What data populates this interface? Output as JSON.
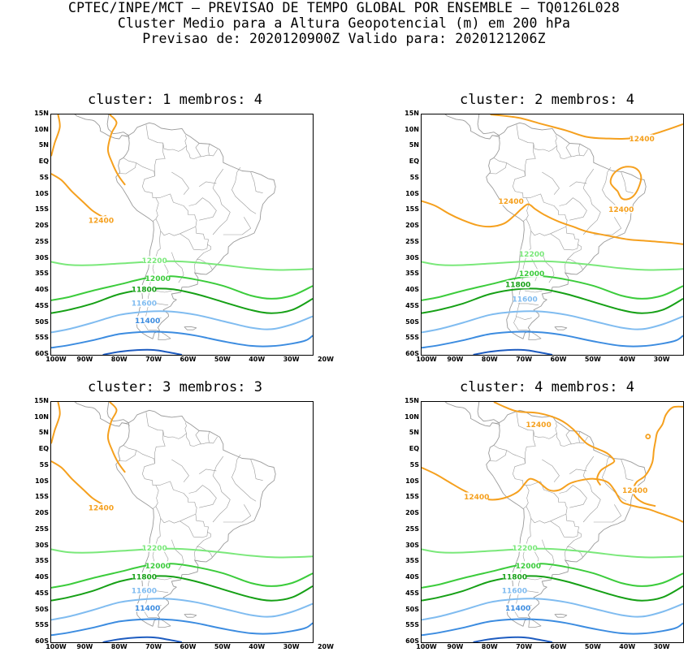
{
  "header": {
    "line1": "CPTEC/INPE/MCT – PREVISAO DE TEMPO GLOBAL POR ENSEMBLE – TQ0126L028",
    "line2": "Cluster Medio para a Altura Geopotencial (m) em 200 hPa",
    "line3": "Previsao de: 2020120900Z    Valido para: 2020121206Z"
  },
  "map": {
    "lat_labels": [
      "15N",
      "10N",
      "5N",
      "EQ",
      "5S",
      "10S",
      "15S",
      "20S",
      "25S",
      "30S",
      "35S",
      "40S",
      "45S",
      "50S",
      "55S",
      "60S"
    ],
    "lon_labels": [
      "100W",
      "90W",
      "80W",
      "70W",
      "60W",
      "50W",
      "40W",
      "30W",
      "20W"
    ],
    "lon_range": [
      -100,
      -24
    ],
    "lat_range": [
      -60,
      15
    ]
  },
  "colors": {
    "c12400": "#f5a01e",
    "c12200": "#7ae87a",
    "c12000": "#3ccc3c",
    "c11800": "#16a016",
    "c11600": "#80bcf0",
    "c11400": "#3c8ce0",
    "c11200": "#1e5cc0",
    "coast": "#9a9a9a"
  },
  "panels": [
    {
      "title": "cluster: 1   membros: 4",
      "contours": [
        {
          "level": 12400,
          "label": "12400"
        },
        {
          "level": 12200,
          "label": "12200"
        },
        {
          "level": 12000,
          "label": "12000"
        },
        {
          "level": 11800,
          "label": "11800"
        },
        {
          "level": 11600,
          "label": "11600"
        },
        {
          "level": 11400,
          "label": "11400"
        }
      ]
    },
    {
      "title": "cluster: 2   membros: 4",
      "contours": [
        {
          "level": 12400,
          "label": "12400"
        },
        {
          "level": 12400,
          "label": "12400"
        },
        {
          "level": 12400,
          "label": "12400"
        },
        {
          "level": 12200,
          "label": "12200"
        },
        {
          "level": 12000,
          "label": "12000"
        },
        {
          "level": 11800,
          "label": "11800"
        },
        {
          "level": 11600,
          "label": "11600"
        }
      ]
    },
    {
      "title": "cluster: 3   membros: 3",
      "contours": [
        {
          "level": 12400,
          "label": "12400"
        },
        {
          "level": 12200,
          "label": "12200"
        },
        {
          "level": 12000,
          "label": "12000"
        },
        {
          "level": 11800,
          "label": "11800"
        },
        {
          "level": 11600,
          "label": "11600"
        },
        {
          "level": 11400,
          "label": "11400"
        }
      ]
    },
    {
      "title": "cluster: 4   membros: 4",
      "contours": [
        {
          "level": 12400,
          "label": "12400"
        },
        {
          "level": 12400,
          "label": "12400"
        },
        {
          "level": 12400,
          "label": "12400"
        },
        {
          "level": 12200,
          "label": "12200"
        },
        {
          "level": 12000,
          "label": "12000"
        },
        {
          "level": 11800,
          "label": "11800"
        },
        {
          "level": 11600,
          "label": "11600"
        },
        {
          "level": 11400,
          "label": "11400"
        }
      ]
    }
  ]
}
